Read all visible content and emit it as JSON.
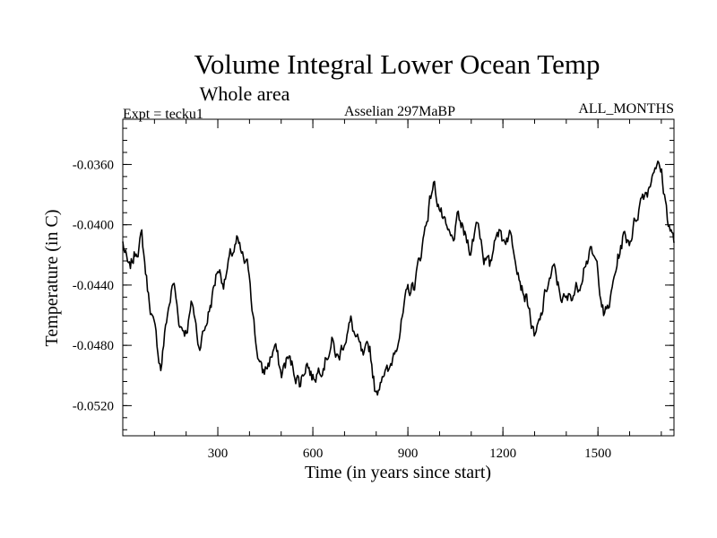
{
  "chart_data": {
    "type": "line",
    "title": "Volume Integral Lower Ocean Temp",
    "subtitle": "Whole area",
    "annotations": {
      "left": "Expt = tecku1",
      "center": "Asselian 297MaBP",
      "right": "ALL_MONTHS"
    },
    "xlabel": "Time (in years since start)",
    "ylabel": "Temperature (in C)",
    "xlim": [
      0,
      1740
    ],
    "ylim": [
      -0.054,
      -0.033
    ],
    "xticks": [
      300,
      600,
      900,
      1200,
      1500
    ],
    "xtick_labels": [
      "300",
      "600",
      "900",
      "1200",
      "1500"
    ],
    "xtick_minor_step": 100,
    "yticks": [
      -0.052,
      -0.048,
      -0.044,
      -0.04,
      -0.036
    ],
    "ytick_labels": [
      "-0.0520",
      "-0.0480",
      "-0.0440",
      "-0.0400",
      "-0.0360"
    ],
    "ytick_minor_step": 0.0008,
    "grid": false,
    "line_color": "#000000",
    "noise_amplitude": 0.00045,
    "noise_seed": 7,
    "x_step": 3,
    "series": [
      {
        "name": "Volume Integral Lower Ocean Temp",
        "x": [
          0,
          20,
          40,
          60,
          80,
          100,
          120,
          140,
          160,
          180,
          200,
          220,
          240,
          260,
          280,
          300,
          320,
          340,
          360,
          380,
          400,
          420,
          440,
          460,
          480,
          500,
          520,
          540,
          560,
          580,
          600,
          620,
          640,
          660,
          680,
          700,
          720,
          740,
          760,
          780,
          800,
          820,
          840,
          860,
          880,
          900,
          920,
          940,
          960,
          980,
          1000,
          1020,
          1040,
          1060,
          1080,
          1100,
          1120,
          1140,
          1160,
          1180,
          1200,
          1220,
          1240,
          1260,
          1280,
          1300,
          1320,
          1340,
          1360,
          1380,
          1400,
          1420,
          1440,
          1460,
          1480,
          1500,
          1520,
          1540,
          1560,
          1580,
          1600,
          1620,
          1640,
          1660,
          1680,
          1700,
          1720,
          1740
        ],
        "y": [
          -0.0412,
          -0.0432,
          -0.0418,
          -0.0408,
          -0.0445,
          -0.047,
          -0.0495,
          -0.046,
          -0.0438,
          -0.0466,
          -0.047,
          -0.0452,
          -0.048,
          -0.0468,
          -0.045,
          -0.0428,
          -0.0438,
          -0.0422,
          -0.0412,
          -0.0424,
          -0.0432,
          -0.0478,
          -0.05,
          -0.0492,
          -0.048,
          -0.05,
          -0.0488,
          -0.0496,
          -0.0505,
          -0.049,
          -0.0502,
          -0.0495,
          -0.0488,
          -0.0478,
          -0.049,
          -0.0475,
          -0.0465,
          -0.0478,
          -0.049,
          -0.0482,
          -0.0515,
          -0.0495,
          -0.05,
          -0.048,
          -0.0465,
          -0.0445,
          -0.044,
          -0.042,
          -0.0395,
          -0.0372,
          -0.0388,
          -0.0405,
          -0.0412,
          -0.0396,
          -0.0408,
          -0.0416,
          -0.0395,
          -0.042,
          -0.043,
          -0.04,
          -0.041,
          -0.0405,
          -0.0418,
          -0.044,
          -0.0452,
          -0.0478,
          -0.0462,
          -0.044,
          -0.043,
          -0.0445,
          -0.0452,
          -0.0445,
          -0.044,
          -0.0422,
          -0.042,
          -0.043,
          -0.0462,
          -0.045,
          -0.0425,
          -0.0408,
          -0.041,
          -0.0395,
          -0.038,
          -0.0375,
          -0.0358,
          -0.0365,
          -0.0395,
          -0.0412
        ]
      }
    ]
  }
}
